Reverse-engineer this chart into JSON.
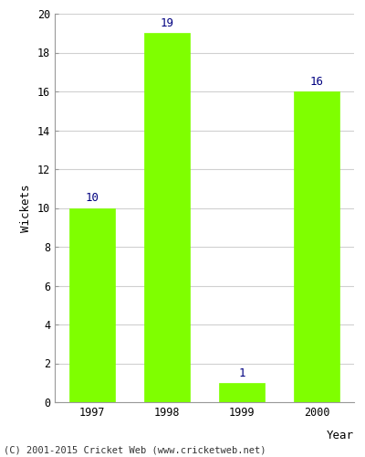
{
  "categories": [
    "1997",
    "1998",
    "1999",
    "2000"
  ],
  "values": [
    10,
    19,
    1,
    16
  ],
  "bar_color": "#7FFF00",
  "bar_edge_color": "#7FFF00",
  "xlabel": "Year",
  "ylabel": "Wickets",
  "ylim": [
    0,
    20
  ],
  "yticks": [
    0,
    2,
    4,
    6,
    8,
    10,
    12,
    14,
    16,
    18,
    20
  ],
  "label_color": "#000080",
  "label_fontsize": 9,
  "axis_label_fontsize": 9,
  "tick_fontsize": 8.5,
  "background_color": "#ffffff",
  "plot_bg_color": "#ffffff",
  "grid_color": "#d0d0d0",
  "footer_text": "(C) 2001-2015 Cricket Web (www.cricketweb.net)",
  "footer_fontsize": 7.5
}
